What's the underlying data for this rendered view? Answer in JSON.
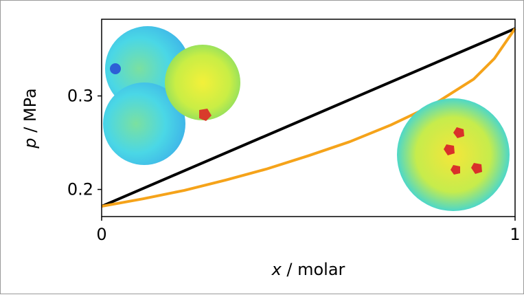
{
  "chart_data": {
    "type": "line",
    "xlabel_symbol": "x",
    "xlabel_unit": " / molar",
    "ylabel_symbol": "p",
    "ylabel_unit": " / MPa",
    "xlim": [
      0,
      1
    ],
    "xticks": [
      0,
      1
    ],
    "ylim": [
      0.171,
      0.382
    ],
    "yticks": [
      0.2,
      0.3
    ],
    "series": [
      {
        "color": "#000000",
        "x": [
          0,
          1
        ],
        "values": [
          0.182,
          0.372
        ]
      },
      {
        "color": "#f5a31a",
        "x": [
          0,
          0.1,
          0.2,
          0.3,
          0.4,
          0.5,
          0.6,
          0.7,
          0.8,
          0.9,
          0.95,
          1.0
        ],
        "values": [
          0.182,
          0.19,
          0.199,
          0.21,
          0.222,
          0.236,
          0.251,
          0.269,
          0.29,
          0.318,
          0.34,
          0.372
        ]
      }
    ]
  }
}
